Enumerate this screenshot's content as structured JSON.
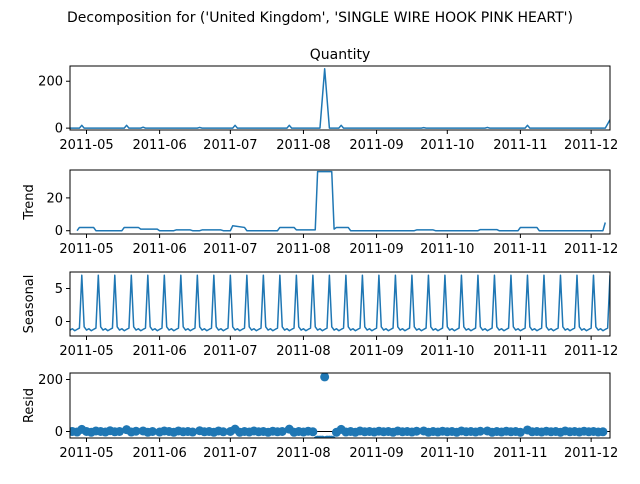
{
  "figure_title": "Decomposition for ('United Kingdom', 'SINGLE WIRE HOOK PINK HEART')",
  "colors": {
    "line": "#1f77b4",
    "axis": "#000000",
    "background": "#ffffff"
  },
  "chart_data": [
    {
      "type": "line",
      "title": "Quantity",
      "ylabel": "",
      "ylim": [
        -8,
        265
      ],
      "yticks": [
        0,
        200
      ],
      "x_start": "2011-04-24",
      "x_end": "2011-12-09",
      "xticks": [
        "2011-05",
        "2011-06",
        "2011-07",
        "2011-08",
        "2011-09",
        "2011-10",
        "2011-11",
        "2011-12"
      ],
      "points": [
        [
          "2011-04-24",
          0
        ],
        [
          "2011-04-28",
          0
        ],
        [
          "2011-04-29",
          12
        ],
        [
          "2011-04-30",
          0
        ],
        [
          "2011-05-17",
          0
        ],
        [
          "2011-05-18",
          12
        ],
        [
          "2011-05-19",
          0
        ],
        [
          "2011-05-24",
          0
        ],
        [
          "2011-05-25",
          4
        ],
        [
          "2011-05-26",
          0
        ],
        [
          "2011-06-17",
          0
        ],
        [
          "2011-06-18",
          3
        ],
        [
          "2011-06-19",
          0
        ],
        [
          "2011-07-02",
          0
        ],
        [
          "2011-07-03",
          12
        ],
        [
          "2011-07-04",
          0
        ],
        [
          "2011-07-25",
          0
        ],
        [
          "2011-07-26",
          12
        ],
        [
          "2011-07-27",
          0
        ],
        [
          "2011-08-08",
          0
        ],
        [
          "2011-08-10",
          253
        ],
        [
          "2011-08-12",
          0
        ],
        [
          "2011-08-16",
          0
        ],
        [
          "2011-08-17",
          12
        ],
        [
          "2011-08-18",
          0
        ],
        [
          "2011-09-20",
          0
        ],
        [
          "2011-09-21",
          2
        ],
        [
          "2011-09-22",
          0
        ],
        [
          "2011-10-17",
          0
        ],
        [
          "2011-10-18",
          3
        ],
        [
          "2011-10-19",
          0
        ],
        [
          "2011-11-03",
          0
        ],
        [
          "2011-11-04",
          12
        ],
        [
          "2011-11-05",
          0
        ],
        [
          "2011-12-07",
          0
        ],
        [
          "2011-12-09",
          36
        ]
      ]
    },
    {
      "type": "line",
      "title": "",
      "ylabel": "Trend",
      "ylim": [
        -2,
        37
      ],
      "yticks": [
        0,
        20
      ],
      "x_start": "2011-04-24",
      "x_end": "2011-12-09",
      "xticks": [
        "2011-05",
        "2011-06",
        "2011-07",
        "2011-08",
        "2011-09",
        "2011-10",
        "2011-11",
        "2011-12"
      ],
      "points": [
        [
          "2011-04-27",
          0
        ],
        [
          "2011-04-28",
          2
        ],
        [
          "2011-05-04",
          2
        ],
        [
          "2011-05-05",
          0
        ],
        [
          "2011-05-16",
          0
        ],
        [
          "2011-05-17",
          2
        ],
        [
          "2011-05-23",
          2
        ],
        [
          "2011-05-24",
          1
        ],
        [
          "2011-05-31",
          1
        ],
        [
          "2011-06-01",
          0
        ],
        [
          "2011-06-07",
          0
        ],
        [
          "2011-06-08",
          0.5
        ],
        [
          "2011-06-14",
          0.5
        ],
        [
          "2011-06-15",
          0
        ],
        [
          "2011-06-18",
          0
        ],
        [
          "2011-06-19",
          0.5
        ],
        [
          "2011-06-27",
          0.5
        ],
        [
          "2011-06-28",
          0
        ],
        [
          "2011-07-01",
          0
        ],
        [
          "2011-07-02",
          3
        ],
        [
          "2011-07-07",
          2
        ],
        [
          "2011-07-08",
          0
        ],
        [
          "2011-07-21",
          0
        ],
        [
          "2011-07-22",
          2
        ],
        [
          "2011-07-28",
          2
        ],
        [
          "2011-07-29",
          0.5
        ],
        [
          "2011-08-06",
          0.5
        ],
        [
          "2011-08-07",
          36
        ],
        [
          "2011-08-13",
          36
        ],
        [
          "2011-08-14",
          1
        ],
        [
          "2011-08-15",
          2
        ],
        [
          "2011-08-20",
          2
        ],
        [
          "2011-08-21",
          0
        ],
        [
          "2011-09-17",
          0
        ],
        [
          "2011-09-18",
          0.5
        ],
        [
          "2011-09-25",
          0.5
        ],
        [
          "2011-09-26",
          0
        ],
        [
          "2011-10-14",
          0
        ],
        [
          "2011-10-15",
          0.7
        ],
        [
          "2011-10-22",
          0.7
        ],
        [
          "2011-10-23",
          0
        ],
        [
          "2011-10-31",
          0
        ],
        [
          "2011-11-01",
          2
        ],
        [
          "2011-11-08",
          2
        ],
        [
          "2011-11-09",
          0
        ],
        [
          "2011-12-06",
          0
        ],
        [
          "2011-12-07",
          5
        ]
      ]
    },
    {
      "type": "line",
      "title": "",
      "ylabel": "Seasonal",
      "ylim": [
        -2.2,
        7.5
      ],
      "yticks": [
        0,
        5
      ],
      "x_start": "2011-04-24",
      "x_end": "2011-12-09",
      "xticks": [
        "2011-05",
        "2011-06",
        "2011-07",
        "2011-08",
        "2011-09",
        "2011-10",
        "2011-11",
        "2011-12"
      ],
      "period_days": 7,
      "first_peak": "2011-04-29",
      "profile": [
        7.0,
        -0.8,
        -1.3,
        -1.1,
        -1.4,
        -1.2,
        -1.0
      ]
    },
    {
      "type": "scatter",
      "title": "",
      "ylabel": "Resid",
      "ylim": [
        -25,
        225
      ],
      "yticks": [
        0,
        200
      ],
      "x_start": "2011-04-24",
      "x_end": "2011-12-09",
      "xticks": [
        "2011-05",
        "2011-06",
        "2011-07",
        "2011-08",
        "2011-09",
        "2011-10",
        "2011-11",
        "2011-12"
      ],
      "points": [
        [
          "2011-04-25",
          0
        ],
        [
          "2011-04-27",
          -2
        ],
        [
          "2011-04-29",
          8
        ],
        [
          "2011-05-01",
          0
        ],
        [
          "2011-05-03",
          -3
        ],
        [
          "2011-05-05",
          2
        ],
        [
          "2011-05-07",
          0
        ],
        [
          "2011-05-09",
          -2
        ],
        [
          "2011-05-11",
          3
        ],
        [
          "2011-05-13",
          -1
        ],
        [
          "2011-05-15",
          0
        ],
        [
          "2011-05-18",
          7
        ],
        [
          "2011-05-20",
          -2
        ],
        [
          "2011-05-22",
          1
        ],
        [
          "2011-05-25",
          2
        ],
        [
          "2011-05-27",
          -3
        ],
        [
          "2011-05-29",
          0
        ],
        [
          "2011-06-01",
          -2
        ],
        [
          "2011-06-03",
          2
        ],
        [
          "2011-06-05",
          0
        ],
        [
          "2011-06-07",
          -3
        ],
        [
          "2011-06-09",
          2
        ],
        [
          "2011-06-11",
          -1
        ],
        [
          "2011-06-13",
          0
        ],
        [
          "2011-06-15",
          -2
        ],
        [
          "2011-06-18",
          3
        ],
        [
          "2011-06-20",
          -1
        ],
        [
          "2011-06-22",
          0
        ],
        [
          "2011-06-24",
          -3
        ],
        [
          "2011-06-26",
          2
        ],
        [
          "2011-06-28",
          -1
        ],
        [
          "2011-07-01",
          0
        ],
        [
          "2011-07-03",
          9
        ],
        [
          "2011-07-05",
          -3
        ],
        [
          "2011-07-07",
          0
        ],
        [
          "2011-07-09",
          -2
        ],
        [
          "2011-07-11",
          2
        ],
        [
          "2011-07-13",
          -1
        ],
        [
          "2011-07-15",
          0
        ],
        [
          "2011-07-17",
          -3
        ],
        [
          "2011-07-19",
          1
        ],
        [
          "2011-07-21",
          -1
        ],
        [
          "2011-07-23",
          0
        ],
        [
          "2011-07-26",
          9
        ],
        [
          "2011-07-28",
          -3
        ],
        [
          "2011-07-30",
          0
        ],
        [
          "2011-08-01",
          -2
        ],
        [
          "2011-08-03",
          1
        ],
        [
          "2011-08-05",
          -1
        ],
        [
          "2011-08-07",
          -33
        ],
        [
          "2011-08-08",
          -33
        ],
        [
          "2011-08-09",
          -33
        ],
        [
          "2011-08-10",
          210
        ],
        [
          "2011-08-11",
          -33
        ],
        [
          "2011-08-12",
          -33
        ],
        [
          "2011-08-13",
          -33
        ],
        [
          "2011-08-15",
          -3
        ],
        [
          "2011-08-17",
          8
        ],
        [
          "2011-08-19",
          -2
        ],
        [
          "2011-08-21",
          0
        ],
        [
          "2011-08-23",
          -3
        ],
        [
          "2011-08-25",
          2
        ],
        [
          "2011-08-27",
          -1
        ],
        [
          "2011-08-29",
          0
        ],
        [
          "2011-08-31",
          -2
        ],
        [
          "2011-09-02",
          1
        ],
        [
          "2011-09-04",
          -1
        ],
        [
          "2011-09-06",
          0
        ],
        [
          "2011-09-08",
          -3
        ],
        [
          "2011-09-10",
          2
        ],
        [
          "2011-09-12",
          -1
        ],
        [
          "2011-09-14",
          0
        ],
        [
          "2011-09-16",
          -2
        ],
        [
          "2011-09-18",
          1
        ],
        [
          "2011-09-21",
          2
        ],
        [
          "2011-09-23",
          -3
        ],
        [
          "2011-09-25",
          0
        ],
        [
          "2011-09-27",
          -2
        ],
        [
          "2011-09-29",
          1
        ],
        [
          "2011-10-01",
          -1
        ],
        [
          "2011-10-03",
          0
        ],
        [
          "2011-10-05",
          -3
        ],
        [
          "2011-10-07",
          2
        ],
        [
          "2011-10-09",
          -1
        ],
        [
          "2011-10-11",
          0
        ],
        [
          "2011-10-13",
          -2
        ],
        [
          "2011-10-15",
          1
        ],
        [
          "2011-10-18",
          2
        ],
        [
          "2011-10-20",
          -3
        ],
        [
          "2011-10-22",
          0
        ],
        [
          "2011-10-24",
          -2
        ],
        [
          "2011-10-26",
          1
        ],
        [
          "2011-10-28",
          -1
        ],
        [
          "2011-10-30",
          0
        ],
        [
          "2011-11-01",
          -3
        ],
        [
          "2011-11-04",
          6
        ],
        [
          "2011-11-06",
          -1
        ],
        [
          "2011-11-08",
          0
        ],
        [
          "2011-11-10",
          -2
        ],
        [
          "2011-11-12",
          1
        ],
        [
          "2011-11-14",
          -1
        ],
        [
          "2011-11-16",
          0
        ],
        [
          "2011-11-18",
          -3
        ],
        [
          "2011-11-20",
          2
        ],
        [
          "2011-11-22",
          -1
        ],
        [
          "2011-11-24",
          0
        ],
        [
          "2011-11-26",
          -2
        ],
        [
          "2011-11-28",
          1
        ],
        [
          "2011-11-30",
          -1
        ],
        [
          "2011-12-02",
          0
        ],
        [
          "2011-12-04",
          -2
        ],
        [
          "2011-12-06",
          -1
        ]
      ]
    }
  ]
}
